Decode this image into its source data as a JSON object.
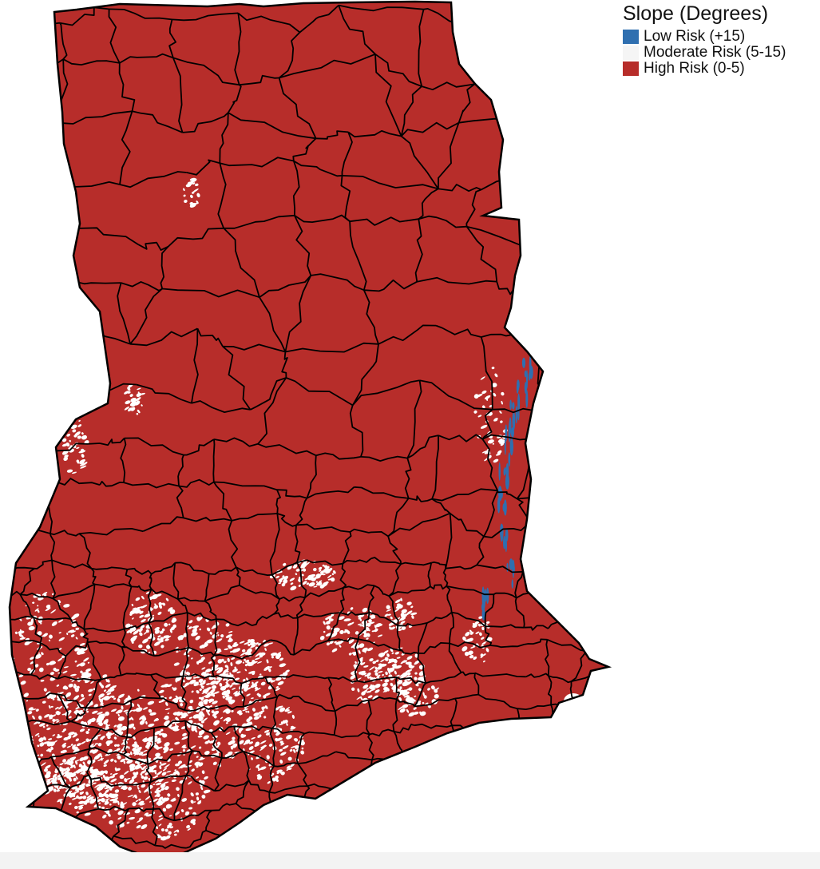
{
  "legend": {
    "title": "Slope (Degrees)",
    "items": [
      {
        "label": "Low Risk (+15)",
        "color": "#2f6fb0"
      },
      {
        "label": "Moderate Risk (5-15)",
        "color": "#f5f5f5"
      },
      {
        "label": "High Risk (0-5)",
        "color": "#b72d2a"
      }
    ]
  },
  "map": {
    "fill_color": "#b72d2a",
    "boundary_color": "#000000",
    "moderate_color": "#ffffff",
    "low_color": "#2f6fb0"
  }
}
